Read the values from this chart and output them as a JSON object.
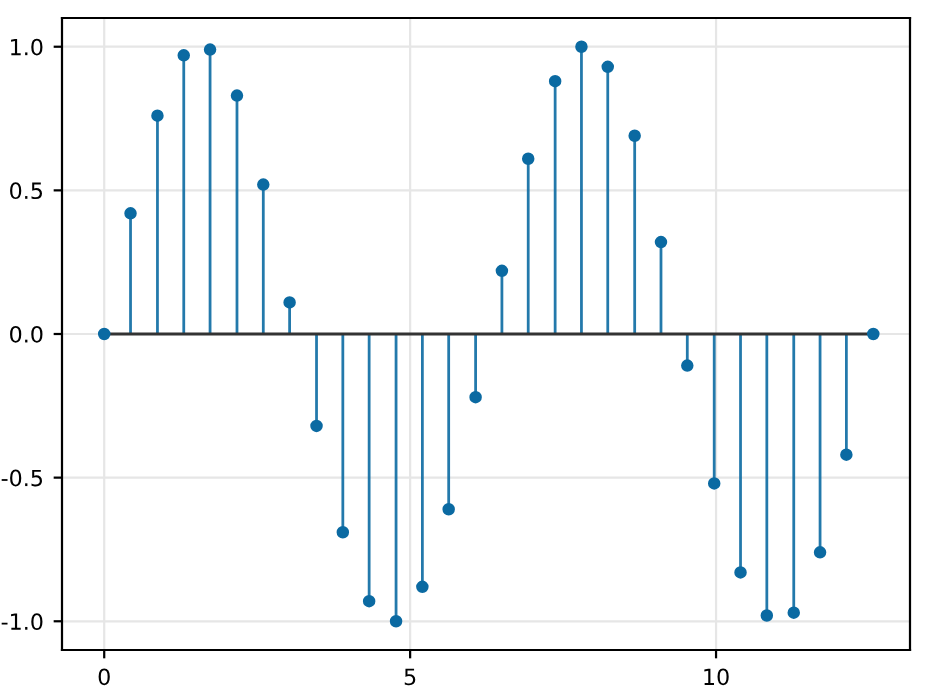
{
  "chart_data": {
    "type": "lollipop",
    "x": [
      0,
      0.43,
      0.87,
      1.3,
      1.73,
      2.17,
      2.6,
      3.03,
      3.47,
      3.9,
      4.33,
      4.77,
      5.2,
      5.63,
      6.07,
      6.5,
      6.93,
      7.37,
      7.8,
      8.23,
      8.67,
      9.1,
      9.53,
      9.97,
      10.4,
      10.83,
      11.27,
      11.7,
      12.13,
      12.57
    ],
    "values": [
      0,
      0.42,
      0.76,
      0.97,
      0.99,
      0.83,
      0.52,
      0.11,
      -0.32,
      -0.69,
      -0.93,
      -1.0,
      -0.88,
      -0.61,
      -0.22,
      0.22,
      0.61,
      0.88,
      1.0,
      0.93,
      0.69,
      0.32,
      -0.11,
      -0.52,
      -0.83,
      -0.98,
      -0.97,
      -0.76,
      -0.42,
      0
    ],
    "color": "#0b6aa2",
    "marker": "circle",
    "xlim": [
      -0.69,
      13.17
    ],
    "ylim": [
      -1.1,
      1.1
    ],
    "xticks": [
      0,
      5,
      10
    ],
    "yticks": [
      {
        "value": -1,
        "label": "-1.0"
      },
      {
        "value": -0.5,
        "label": "-0.5"
      },
      {
        "value": 0,
        "label": "0.0"
      },
      {
        "value": 0.5,
        "label": "0.5"
      },
      {
        "value": 1,
        "label": "1.0"
      }
    ],
    "grid": true
  }
}
